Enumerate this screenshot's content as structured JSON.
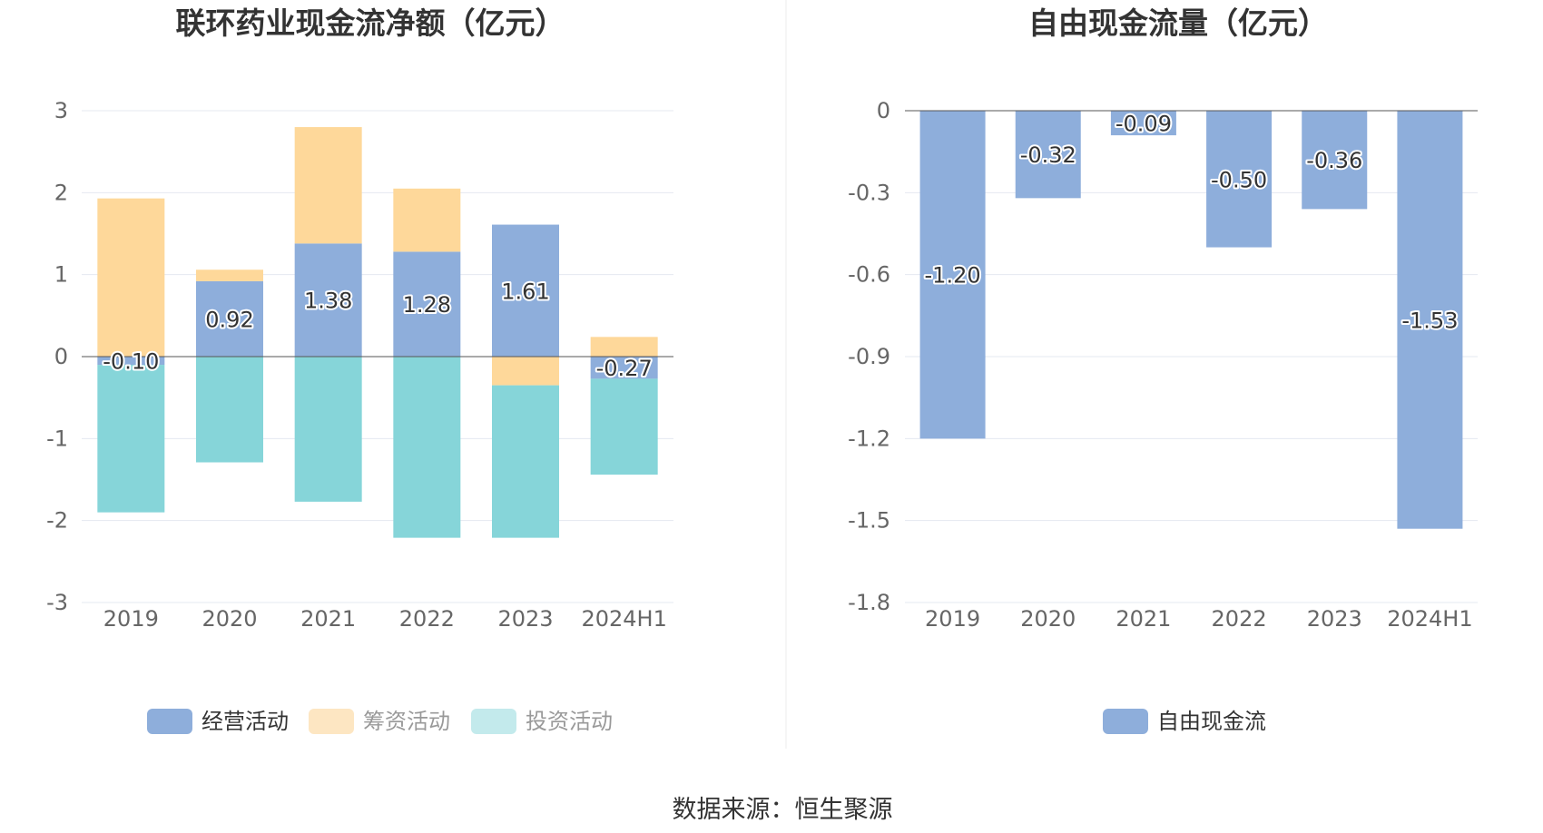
{
  "chart_data": [
    {
      "type": "bar",
      "stacked": true,
      "title": "联环药业现金流净额（亿元）",
      "categories": [
        "2019",
        "2020",
        "2021",
        "2022",
        "2023",
        "2024H1"
      ],
      "ylim": [
        -3,
        3
      ],
      "yticks": [
        "3",
        "2",
        "1",
        "0",
        "-1",
        "-2",
        "-3"
      ],
      "grid": true,
      "legend_position": "bottom",
      "series": [
        {
          "name": "经营活动",
          "color": "#8eaedb",
          "values": [
            -0.1,
            0.92,
            1.38,
            1.28,
            1.61,
            -0.27
          ],
          "labels": [
            "-0.10",
            "0.92",
            "1.38",
            "1.28",
            "1.61",
            "-0.27"
          ]
        },
        {
          "name": "筹资活动",
          "color": "#fed89a",
          "values": [
            1.93,
            0.14,
            1.42,
            0.77,
            -0.35,
            0.24
          ]
        },
        {
          "name": "投资活动",
          "color": "#86d5d9",
          "values": [
            -1.8,
            -1.29,
            -1.77,
            -2.21,
            -1.86,
            -1.17
          ]
        }
      ]
    },
    {
      "type": "bar",
      "title": "自由现金流量（亿元）",
      "categories": [
        "2019",
        "2020",
        "2021",
        "2022",
        "2023",
        "2024H1"
      ],
      "ylim": [
        -1.8,
        0
      ],
      "yticks": [
        "0",
        "-0.3",
        "-0.6",
        "-0.9",
        "-1.2",
        "-1.5",
        "-1.8"
      ],
      "grid": true,
      "legend_position": "bottom",
      "series": [
        {
          "name": "自由现金流",
          "color": "#8eaedb",
          "values": [
            -1.2,
            -0.32,
            -0.09,
            -0.5,
            -0.36,
            -1.53
          ],
          "labels": [
            "-1.20",
            "-0.32",
            "-0.09",
            "-0.50",
            "-0.36",
            "-1.53"
          ]
        }
      ]
    }
  ],
  "legend_colors": {
    "dim_swatch_2": "#fde6c2",
    "dim_swatch_3": "#c3eaec"
  },
  "source": "数据来源：恒生聚源"
}
